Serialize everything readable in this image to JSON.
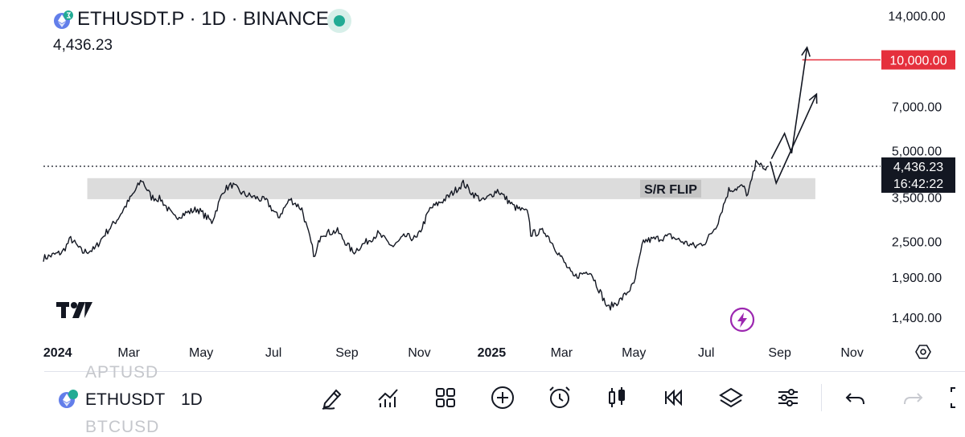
{
  "header": {
    "title": "ETHUSDT.P · 1D · BINANCE",
    "price": "4,436.23"
  },
  "chart_data": {
    "type": "line",
    "yscale": "log",
    "ylim": [
      1200,
      14500
    ],
    "y_ticks": [
      "14,000.00",
      "10,000.00",
      "7,000.00",
      "5,000.00",
      "3,500.00",
      "2,500.00",
      "1,900.00",
      "1,400.00"
    ],
    "y_tick_values": [
      14000,
      10000,
      7000,
      5000,
      3500,
      2500,
      1900,
      1400
    ],
    "x_ticks": [
      "2024",
      "Mar",
      "May",
      "Jul",
      "Sep",
      "Nov",
      "2025",
      "Mar",
      "May",
      "Jul",
      "Sep",
      "Nov"
    ],
    "x_tick_dates": [
      "2024-01-01",
      "2024-03-01",
      "2024-05-01",
      "2024-07-01",
      "2024-09-01",
      "2024-11-01",
      "2025-01-01",
      "2025-03-01",
      "2025-05-01",
      "2025-07-01",
      "2025-09-01",
      "2025-11-01"
    ],
    "xlim": [
      "2023-12-20",
      "2025-11-25"
    ],
    "series": [
      {
        "x": [
          "2023-12-20",
          "2024-01-05",
          "2024-01-12",
          "2024-01-22",
          "2024-02-01",
          "2024-02-10",
          "2024-02-20",
          "2024-03-01",
          "2024-03-12",
          "2024-03-20",
          "2024-03-28",
          "2024-04-08",
          "2024-04-18",
          "2024-04-28",
          "2024-05-10",
          "2024-05-20",
          "2024-05-27",
          "2024-06-05",
          "2024-06-15",
          "2024-06-25",
          "2024-07-05",
          "2024-07-15",
          "2024-07-25",
          "2024-08-05",
          "2024-08-10",
          "2024-08-24",
          "2024-09-06",
          "2024-09-15",
          "2024-09-27",
          "2024-10-10",
          "2024-10-20",
          "2024-10-30",
          "2024-11-10",
          "2024-11-25",
          "2024-12-08",
          "2024-12-16",
          "2024-12-25",
          "2025-01-06",
          "2025-01-20",
          "2025-02-01",
          "2025-02-03",
          "2025-02-15",
          "2025-03-01",
          "2025-03-11",
          "2025-03-25",
          "2025-04-09",
          "2025-04-20",
          "2025-05-01",
          "2025-05-09",
          "2025-05-20",
          "2025-06-01",
          "2025-06-10",
          "2025-06-22",
          "2025-07-01",
          "2025-07-10",
          "2025-07-20",
          "2025-08-01",
          "2025-08-05",
          "2025-08-13",
          "2025-08-18",
          "2025-08-22"
        ],
        "close": [
          2200,
          2300,
          2550,
          2300,
          2350,
          2650,
          2950,
          3400,
          4000,
          3500,
          3450,
          3000,
          3100,
          3200,
          2900,
          3700,
          3850,
          3600,
          3500,
          3400,
          3000,
          3450,
          3200,
          2200,
          2650,
          2700,
          2300,
          2450,
          2650,
          2400,
          2600,
          2550,
          3200,
          3500,
          3900,
          3600,
          3400,
          3700,
          3250,
          3100,
          2650,
          2700,
          2200,
          1900,
          2000,
          1500,
          1600,
          1800,
          2500,
          2550,
          2600,
          2500,
          2400,
          2500,
          2850,
          3700,
          3800,
          3550,
          4700,
          4300,
          4436.23
        ]
      }
    ],
    "annotations": {
      "sr_zone": {
        "low": 3450,
        "high": 4050,
        "label": "S/R FLIP",
        "start": "2024-01-26",
        "end": "2025-10-01"
      },
      "target_line": {
        "value": 10000,
        "label": "10,000.00",
        "start": "2025-09-20"
      },
      "last_price": {
        "value": 4436.23,
        "label": "4,436.23",
        "countdown": "16:42:22"
      },
      "projection_paths": [
        {
          "points": [
            [
              "2025-08-25",
              4700
            ],
            [
              "2025-09-05",
              5700
            ],
            [
              "2025-09-11",
              4900
            ],
            [
              "2025-09-24",
              11000
            ]
          ]
        },
        {
          "points": [
            [
              "2025-08-24",
              4600
            ],
            [
              "2025-08-29",
              3900
            ],
            [
              "2025-10-02",
              7700
            ]
          ]
        }
      ]
    },
    "colors": {
      "price": "#131722",
      "zone": "#dcdcdc",
      "target": "#e5303c",
      "label_bg": "#131722"
    }
  },
  "toolbar": {
    "symbol": "ETHUSDT",
    "interval": "1D",
    "ghost_top": "APTUSD",
    "ghost_bottom": "BTCUSD",
    "icons": [
      "pencil-icon",
      "indicators-icon",
      "layouts-icon",
      "add-icon",
      "alarm-icon",
      "candles-icon",
      "replay-icon",
      "layers-icon",
      "settings-icon",
      "undo-icon",
      "redo-icon",
      "fullscreen-icon"
    ]
  }
}
